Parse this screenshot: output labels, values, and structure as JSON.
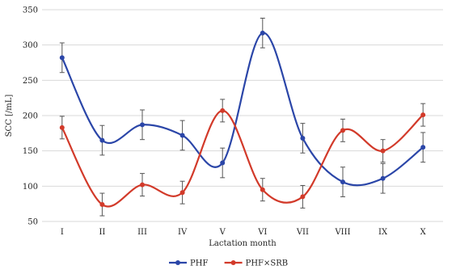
{
  "chart_data": {
    "type": "line",
    "title": "",
    "xlabel": "Lactation month",
    "ylabel": "SCC [/mL]",
    "ylim": [
      50,
      350
    ],
    "yticks": [
      50,
      100,
      150,
      200,
      250,
      300,
      350
    ],
    "grid": "horizontal",
    "legend_position": "bottom-center",
    "smooth": true,
    "categories": [
      "I",
      "II",
      "III",
      "IV",
      "V",
      "VI",
      "VII",
      "VIII",
      "IX",
      "X"
    ],
    "series": [
      {
        "name": "PHF",
        "color": "#2b46a8",
        "values": [
          282,
          165,
          187,
          172,
          133,
          317,
          168,
          106,
          111,
          155
        ],
        "error": [
          21,
          21,
          21,
          21,
          21,
          21,
          21,
          21,
          21,
          21
        ]
      },
      {
        "name": "PHF×SRB",
        "color": "#d23a2a",
        "values": [
          183,
          74,
          102,
          91,
          207,
          95,
          85,
          179,
          150,
          201
        ],
        "error": [
          16,
          16,
          16,
          16,
          16,
          16,
          16,
          16,
          16,
          16
        ]
      }
    ]
  }
}
